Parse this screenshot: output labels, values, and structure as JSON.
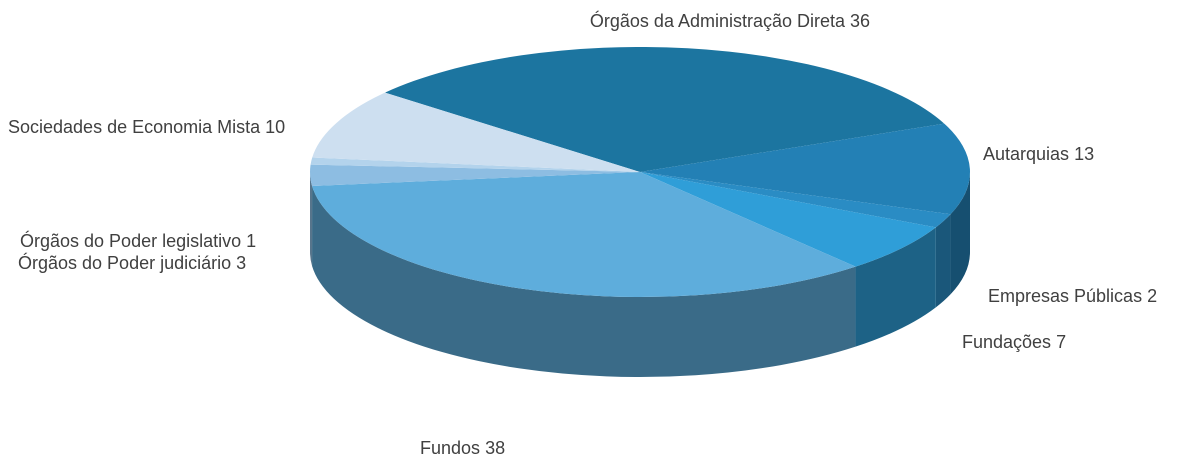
{
  "chart_data": {
    "type": "pie3d",
    "categories": [
      "Órgãos da Administração Direta",
      "Autarquias",
      "Empresas Públicas",
      "Fundações",
      "Fundos",
      "Órgãos do Poder judiciário",
      "Órgãos do Poder legislativo",
      "Sociedades de Economia Mista"
    ],
    "values": [
      36,
      13,
      2,
      7,
      38,
      3,
      1,
      10
    ],
    "colors": [
      "#1c75a0",
      "#2380b5",
      "#2a8cc4",
      "#2f9ed8",
      "#5eaddc",
      "#8dbde2",
      "#b3d3ec",
      "#cddff0"
    ]
  }
}
